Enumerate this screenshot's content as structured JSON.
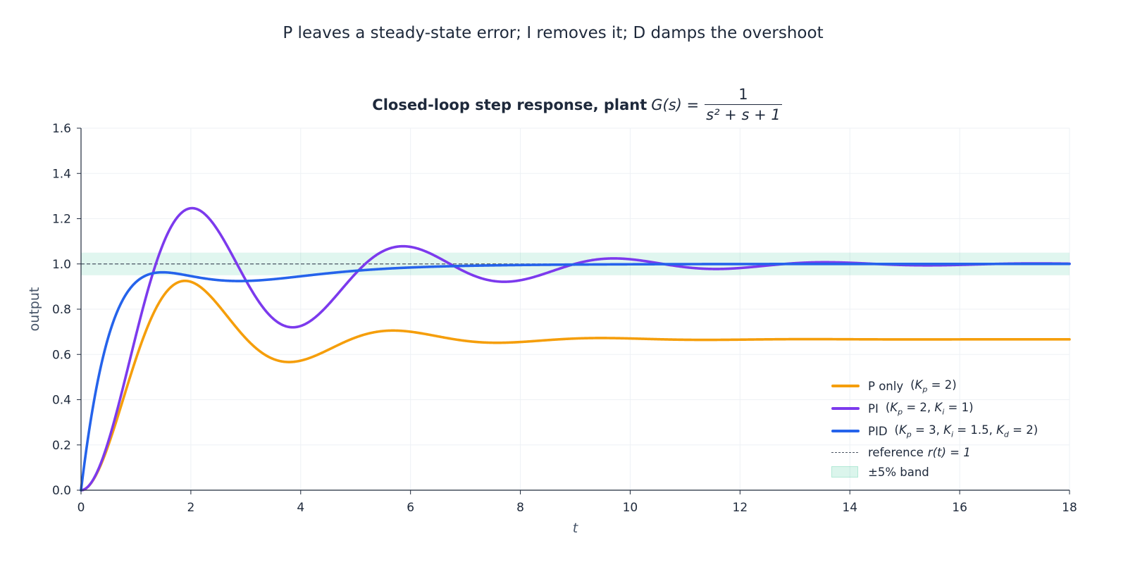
{
  "suptitle": "P leaves a steady-state error; I removes it; D damps the overshoot",
  "chart_data": {
    "type": "line",
    "title": {
      "bold": "Closed-loop step response, plant",
      "lhs": "G(s) =",
      "numerator": "1",
      "denominator": "s² + s + 1"
    },
    "plant": {
      "num": [
        1
      ],
      "den": [
        1,
        1,
        1
      ]
    },
    "xlabel": "t",
    "ylabel": "output",
    "xlim": [
      0,
      18
    ],
    "ylim": [
      0,
      1.6
    ],
    "xticks": [
      "0",
      "2",
      "4",
      "6",
      "8",
      "10",
      "12",
      "14",
      "16",
      "18"
    ],
    "yticks": [
      "0.0",
      "0.2",
      "0.4",
      "0.6",
      "0.8",
      "1.0",
      "1.2",
      "1.4",
      "1.6"
    ],
    "grid": true,
    "legend_position": "lower-right",
    "x": [
      0,
      1,
      2,
      3,
      4,
      5,
      6,
      7,
      8,
      9,
      10,
      11,
      12,
      13,
      14,
      15,
      16,
      17,
      18
    ],
    "series": [
      {
        "name": "P only",
        "params": [
          {
            "sym": "K",
            "sub": "p",
            "val": "2"
          }
        ],
        "gains": {
          "Kp": 2,
          "Ki": 0,
          "Kd": 0
        },
        "color": "#f59e0b",
        "values": [
          0,
          0.62,
          0.92,
          0.68,
          0.57,
          0.67,
          0.7,
          0.66,
          0.655,
          0.67,
          0.67,
          0.667,
          0.667,
          0.667,
          0.667,
          0.667,
          0.667,
          0.667,
          0.667
        ]
      },
      {
        "name": "PI",
        "params": [
          {
            "sym": "K",
            "sub": "p",
            "val": "2"
          },
          {
            "sym": "K",
            "sub": "i",
            "val": "1"
          }
        ],
        "gains": {
          "Kp": 2,
          "Ki": 1,
          "Kd": 0
        },
        "color": "#7c3aed",
        "values": [
          0,
          0.8,
          1.25,
          0.9,
          0.73,
          0.97,
          1.075,
          0.98,
          0.93,
          0.99,
          1.02,
          0.99,
          0.985,
          1.0,
          1.007,
          0.997,
          0.995,
          1.0,
          1.0
        ]
      },
      {
        "name": "PID",
        "params": [
          {
            "sym": "K",
            "sub": "p",
            "val": "3"
          },
          {
            "sym": "K",
            "sub": "i",
            "val": "1.5"
          },
          {
            "sym": "K",
            "sub": "d",
            "val": "2"
          }
        ],
        "gains": {
          "Kp": 3,
          "Ki": 1.5,
          "Kd": 2
        },
        "color": "#2563eb",
        "values": [
          0,
          0.92,
          0.945,
          0.925,
          0.945,
          0.97,
          0.983,
          0.99,
          0.995,
          0.997,
          0.999,
          1.0,
          1.0,
          1.0,
          1.0,
          1.0,
          1.0,
          1.0,
          1.0
        ]
      }
    ],
    "reference": {
      "label": "reference",
      "expr": "r(t) = 1",
      "value": 1,
      "color": "#4b5563"
    },
    "band": {
      "label": "±5% band",
      "low": 0.95,
      "high": 1.05,
      "color": "#10b981"
    }
  }
}
